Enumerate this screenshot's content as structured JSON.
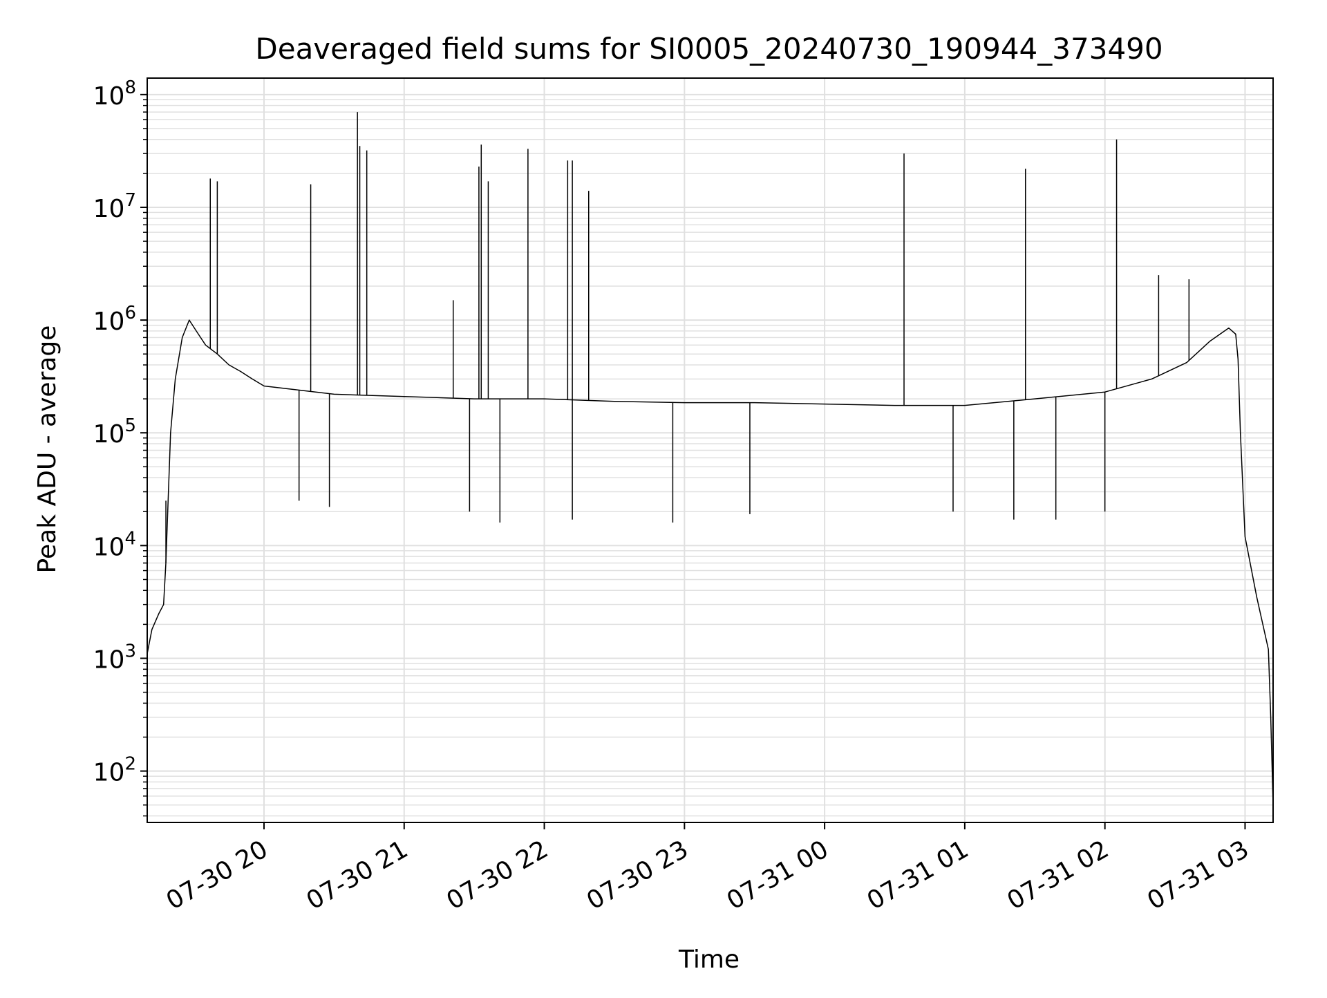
{
  "chart_data": {
    "type": "line",
    "title": "Deaveraged field sums for SI0005_20240730_190944_373490",
    "xlabel": "Time",
    "ylabel": "Peak ADU - average",
    "y_scale": "log",
    "ylim": [
      35,
      140000000
    ],
    "xlim": [
      "2024-07-30 19:10",
      "2024-07-31 03:12"
    ],
    "grid": true,
    "grid_minor": true,
    "line_color": "#000000",
    "grid_color": "#e0e0e0",
    "x_ticks": [
      {
        "label": "07-30 20",
        "value": "2024-07-30 20:00"
      },
      {
        "label": "07-30 21",
        "value": "2024-07-30 21:00"
      },
      {
        "label": "07-30 22",
        "value": "2024-07-30 22:00"
      },
      {
        "label": "07-30 23",
        "value": "2024-07-30 23:00"
      },
      {
        "label": "07-31 00",
        "value": "2024-07-31 00:00"
      },
      {
        "label": "07-31 01",
        "value": "2024-07-31 01:00"
      },
      {
        "label": "07-31 02",
        "value": "2024-07-31 02:00"
      },
      {
        "label": "07-31 03",
        "value": "2024-07-31 03:00"
      }
    ],
    "y_ticks": [
      {
        "base": "10",
        "exp": "2",
        "value": 100
      },
      {
        "base": "10",
        "exp": "3",
        "value": 1000
      },
      {
        "base": "10",
        "exp": "4",
        "value": 10000
      },
      {
        "base": "10",
        "exp": "5",
        "value": 100000
      },
      {
        "base": "10",
        "exp": "6",
        "value": 1000000
      },
      {
        "base": "10",
        "exp": "7",
        "value": 10000000
      },
      {
        "base": "10",
        "exp": "8",
        "value": 100000000
      }
    ],
    "series": [
      {
        "x": [
          "2024-07-30 19:10",
          "2024-07-30 19:12",
          "2024-07-30 19:15",
          "2024-07-30 19:17",
          "2024-07-30 19:18",
          "2024-07-30 19:20",
          "2024-07-30 19:22",
          "2024-07-30 19:25",
          "2024-07-30 19:28",
          "2024-07-30 19:31",
          "2024-07-30 19:35",
          "2024-07-30 19:40",
          "2024-07-30 19:45",
          "2024-07-30 19:50",
          "2024-07-30 19:55",
          "2024-07-30 20:00",
          "2024-07-30 20:30",
          "2024-07-30 21:00",
          "2024-07-30 21:30",
          "2024-07-30 22:00",
          "2024-07-30 22:30",
          "2024-07-30 23:00",
          "2024-07-30 23:30",
          "2024-07-31 00:00",
          "2024-07-31 00:30",
          "2024-07-31 01:00",
          "2024-07-31 01:30",
          "2024-07-31 02:00",
          "2024-07-31 02:20",
          "2024-07-31 02:35",
          "2024-07-31 02:45",
          "2024-07-31 02:53",
          "2024-07-31 02:56",
          "2024-07-31 02:57",
          "2024-07-31 02:58",
          "2024-07-31 03:00",
          "2024-07-31 03:05",
          "2024-07-31 03:10",
          "2024-07-31 03:11",
          "2024-07-31 03:12"
        ],
        "y": [
          1100,
          1800,
          2500,
          3000,
          7000,
          100000,
          300000,
          700000,
          1000000,
          800000,
          600000,
          500000,
          400000,
          350000,
          300000,
          260000,
          220000,
          210000,
          200000,
          200000,
          190000,
          185000,
          185000,
          180000,
          175000,
          175000,
          200000,
          230000,
          300000,
          420000,
          650000,
          850000,
          750000,
          450000,
          100000,
          12000,
          3500,
          1200,
          300,
          50
        ]
      }
    ],
    "spikes": [
      {
        "x": "2024-07-30 19:37",
        "y": 18000000
      },
      {
        "x": "2024-07-30 19:40",
        "y": 17000000
      },
      {
        "x": "2024-07-30 20:20",
        "y": 16000000
      },
      {
        "x": "2024-07-30 20:40",
        "y": 70000000
      },
      {
        "x": "2024-07-30 20:41",
        "y": 35000000
      },
      {
        "x": "2024-07-30 20:44",
        "y": 32000000
      },
      {
        "x": "2024-07-30 21:21",
        "y": 1500000
      },
      {
        "x": "2024-07-30 21:32",
        "y": 23000000
      },
      {
        "x": "2024-07-30 21:33",
        "y": 36000000
      },
      {
        "x": "2024-07-30 21:36",
        "y": 17000000
      },
      {
        "x": "2024-07-30 21:53",
        "y": 33000000
      },
      {
        "x": "2024-07-30 22:10",
        "y": 26000000
      },
      {
        "x": "2024-07-30 22:12",
        "y": 26000000
      },
      {
        "x": "2024-07-30 22:19",
        "y": 14000000
      },
      {
        "x": "2024-07-31 00:34",
        "y": 30000000
      },
      {
        "x": "2024-07-31 01:26",
        "y": 22000000
      },
      {
        "x": "2024-07-31 02:05",
        "y": 40000000
      },
      {
        "x": "2024-07-31 02:23",
        "y": 2500000
      },
      {
        "x": "2024-07-31 02:36",
        "y": 2300000
      }
    ],
    "dips": [
      {
        "x": "2024-07-30 19:18",
        "y": 25000
      },
      {
        "x": "2024-07-30 20:15",
        "y": 25000
      },
      {
        "x": "2024-07-30 20:28",
        "y": 22000
      },
      {
        "x": "2024-07-30 21:28",
        "y": 20000
      },
      {
        "x": "2024-07-30 21:41",
        "y": 16000
      },
      {
        "x": "2024-07-30 22:12",
        "y": 17000
      },
      {
        "x": "2024-07-30 22:55",
        "y": 16000
      },
      {
        "x": "2024-07-30 23:28",
        "y": 19000
      },
      {
        "x": "2024-07-31 00:55",
        "y": 20000
      },
      {
        "x": "2024-07-31 01:21",
        "y": 17000
      },
      {
        "x": "2024-07-31 01:39",
        "y": 17000
      },
      {
        "x": "2024-07-31 02:00",
        "y": 20000
      }
    ]
  }
}
